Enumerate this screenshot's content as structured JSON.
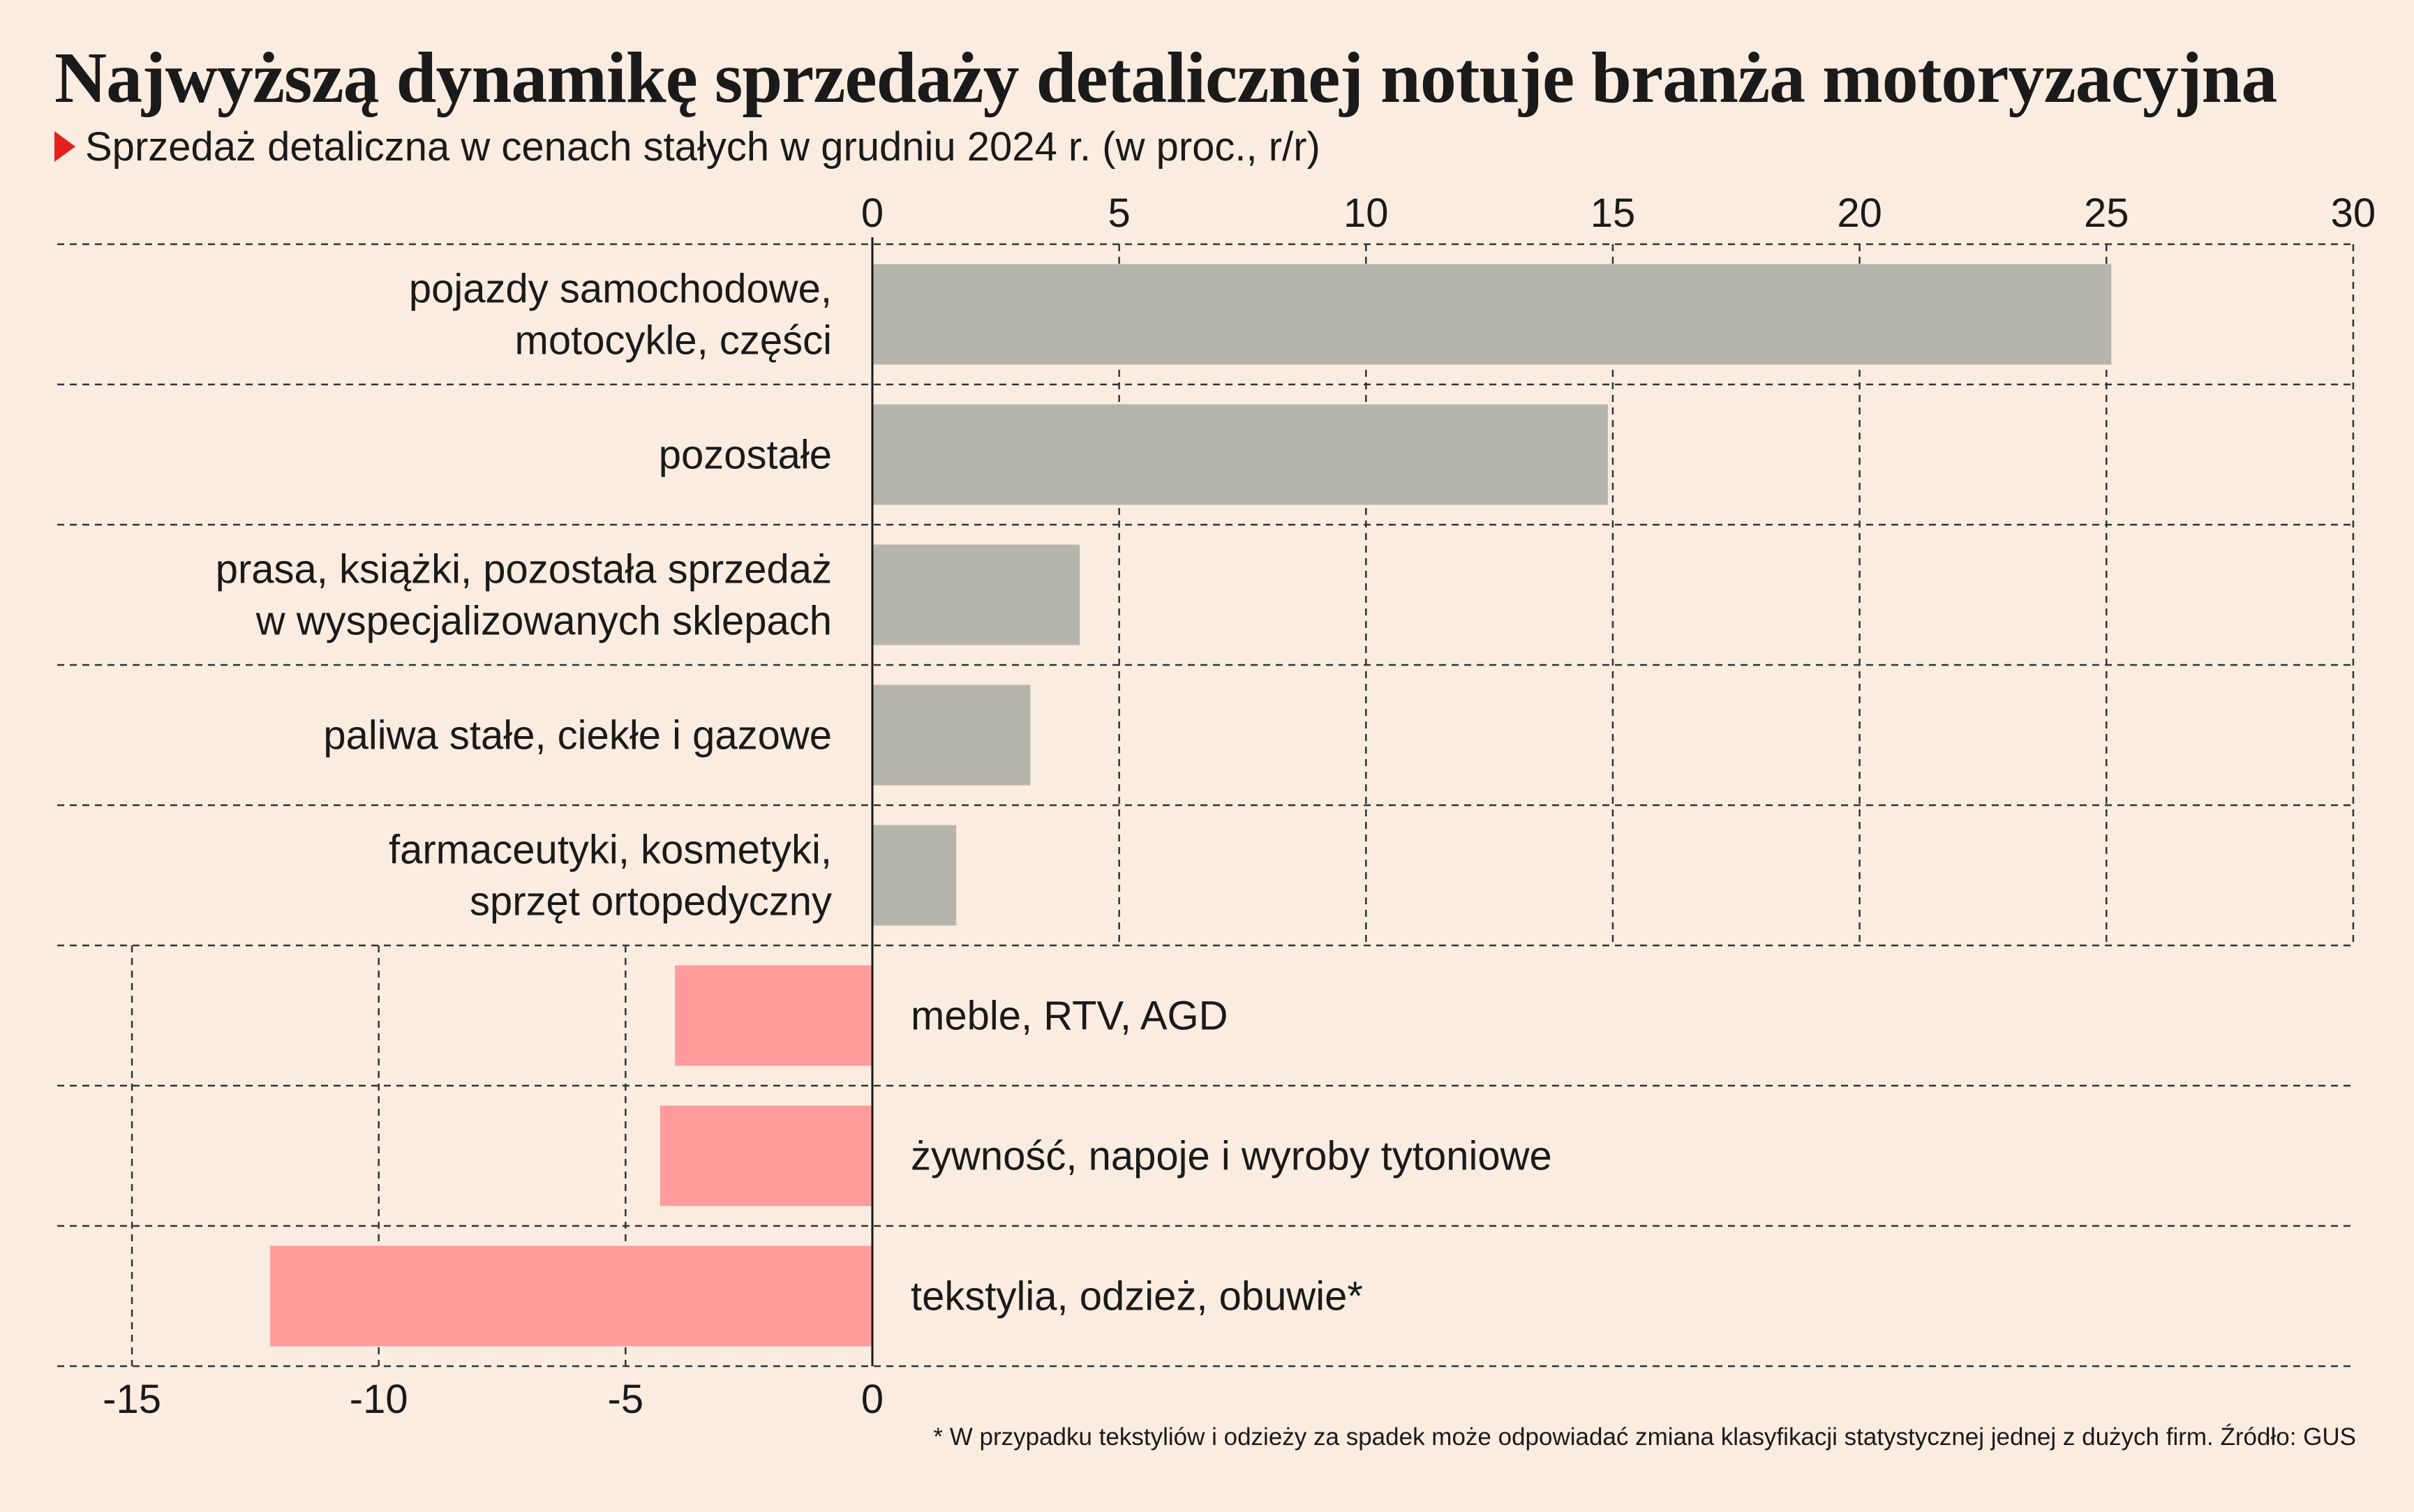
{
  "title": "Najwyższą dynamikę sprzedaży detalicznej notuje branża motoryzacyjna",
  "subtitle": "Sprzedaż detaliczna w cenach stałych w grudniu 2024 r. (w proc., r/r)",
  "footnote": "* W przypadku tekstyliów i odzieży za spadek może odpowiadać zmiana klasyfikacji statystycznej jednej z dużych firm. Źródło: GUS",
  "colors": {
    "background": "#faece0",
    "positive_bar": "#b5b5ab",
    "negative_bar": "#ff9b9b",
    "marker": "#e3221b"
  },
  "chart_data": {
    "type": "bar",
    "orientation": "horizontal",
    "categories": [
      [
        "pojazdy samochodowe,",
        "motocykle, części"
      ],
      [
        "pozostałe"
      ],
      [
        "prasa, książki, pozostała sprzedaż",
        "w wyspecjalizowanych sklepach"
      ],
      [
        "paliwa stałe, ciekłe i gazowe"
      ],
      [
        "farmaceutyki, kosmetyki,",
        "sprzęt ortopedyczny"
      ],
      [
        "meble, RTV, AGD"
      ],
      [
        "żywność, napoje i wyroby tytoniowe"
      ],
      [
        "tekstylia, odzież, obuwie*"
      ]
    ],
    "values": [
      25.1,
      14.9,
      4.2,
      3.2,
      1.7,
      -4.0,
      -4.3,
      -12.2
    ],
    "top_axis": {
      "ticks": [
        "0",
        "5",
        "10",
        "15",
        "20",
        "25",
        "30"
      ],
      "range": [
        0,
        30
      ]
    },
    "bottom_axis": {
      "ticks": [
        "-15",
        "-10",
        "-5",
        "0"
      ],
      "range": [
        -15,
        0
      ]
    },
    "grid": true
  }
}
